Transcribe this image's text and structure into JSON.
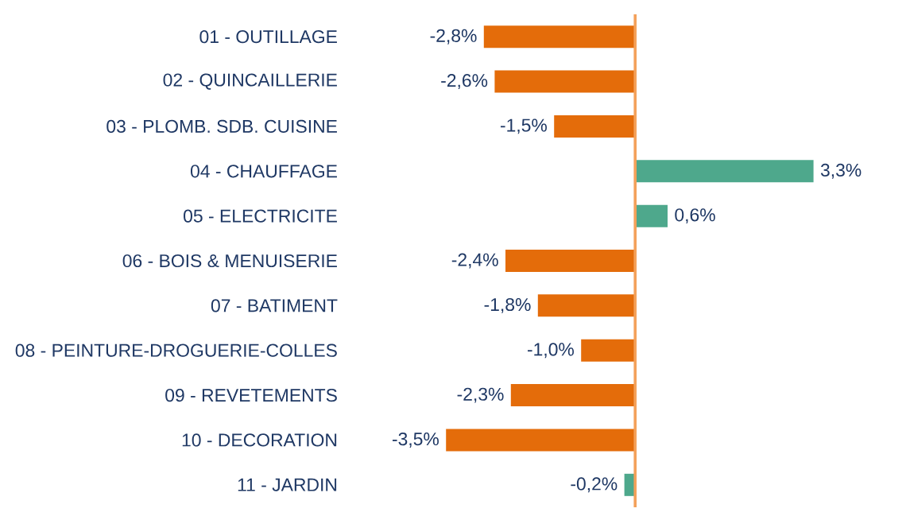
{
  "chart_data": {
    "type": "bar",
    "orientation": "horizontal",
    "categories": [
      "01 - OUTILLAGE",
      "02 - QUINCAILLERIE",
      "03 - PLOMB. SDB. CUISINE",
      "04 - CHAUFFAGE",
      "05 - ELECTRICITE",
      "06 - BOIS & MENUISERIE",
      "07 - BATIMENT",
      "08 - PEINTURE-DROGUERIE-COLLES",
      "09 - REVETEMENTS",
      "10 - DECORATION",
      "11 - JARDIN"
    ],
    "values": [
      -2.8,
      -2.6,
      -1.5,
      3.3,
      0.6,
      -2.4,
      -1.8,
      -1.0,
      -2.3,
      -3.5,
      -0.2
    ],
    "colors": [
      "#e46c0a",
      "#e46c0a",
      "#e46c0a",
      "#4ea88c",
      "#4ea88c",
      "#e46c0a",
      "#e46c0a",
      "#e46c0a",
      "#e46c0a",
      "#e46c0a",
      "#4ea88c"
    ],
    "value_labels": [
      "-2,8%",
      "-2,6%",
      "-1,5%",
      "3,3%",
      "0,6%",
      "-2,4%",
      "-1,8%",
      "-1,0%",
      "-2,3%",
      "-3,5%",
      "-0,2%"
    ],
    "ref_lines": [
      {
        "axis": "x",
        "value": 0,
        "color": "#f4a15a"
      }
    ],
    "tick_labels": "y"
  }
}
